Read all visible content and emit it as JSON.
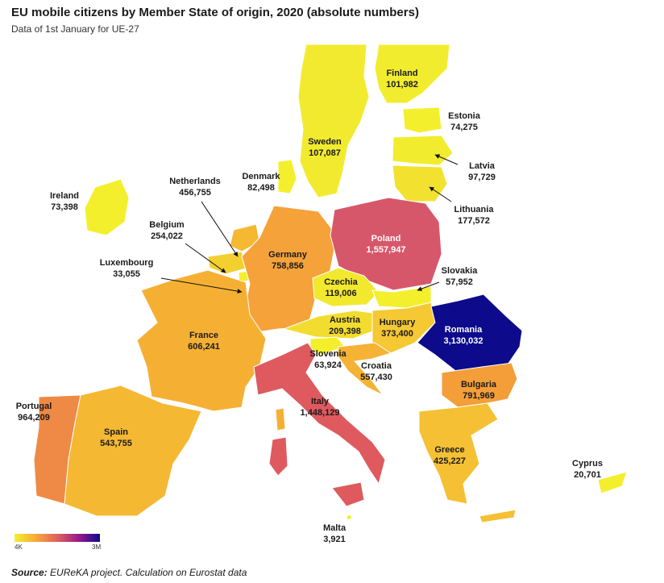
{
  "header": {
    "title": "EU mobile citizens by Member State of origin, 2020 (absolute numbers)",
    "subtitle": "Data of 1st January for UE-27"
  },
  "footer": {
    "source_label": "Source:",
    "source_text": " EUReKA project. Calculation on Eurostat data"
  },
  "legend": {
    "min_label": "4K",
    "max_label": "3M",
    "colors": [
      "#f5f02c",
      "#f7a83a",
      "#e0605e",
      "#9a1a8a",
      "#0d0a8c"
    ]
  },
  "map_data": {
    "type": "choropleth",
    "value_range": [
      3921,
      3130032
    ],
    "regions": [
      {
        "name": "Finland",
        "value_label": "101,982",
        "value": 101982,
        "color": "#f2ec2e"
      },
      {
        "name": "Estonia",
        "value_label": "74,275",
        "value": 74275,
        "color": "#f4ef2d"
      },
      {
        "name": "Latvia",
        "value_label": "97,729",
        "value": 97729,
        "color": "#f2ec2e"
      },
      {
        "name": "Lithuania",
        "value_label": "177,572",
        "value": 177572,
        "color": "#f2e22f"
      },
      {
        "name": "Sweden",
        "value_label": "107,087",
        "value": 107087,
        "color": "#f2ea2e"
      },
      {
        "name": "Denmark",
        "value_label": "82,498",
        "value": 82498,
        "color": "#f4ef2d"
      },
      {
        "name": "Ireland",
        "value_label": "73,398",
        "value": 73398,
        "color": "#f4ef2d"
      },
      {
        "name": "Netherlands",
        "value_label": "456,755",
        "value": 456755,
        "color": "#f5b833"
      },
      {
        "name": "Belgium",
        "value_label": "254,022",
        "value": 254022,
        "color": "#f2d030"
      },
      {
        "name": "Luxembourg",
        "value_label": "33,055",
        "value": 33055,
        "color": "#f4ef2d"
      },
      {
        "name": "Germany",
        "value_label": "758,856",
        "value": 758856,
        "color": "#f5a23a"
      },
      {
        "name": "Poland",
        "value_label": "1,557,947",
        "value": 1557947,
        "color": "#d7576a"
      },
      {
        "name": "Czechia",
        "value_label": "119,006",
        "value": 119006,
        "color": "#f2e82e"
      },
      {
        "name": "Slovakia",
        "value_label": "57,952",
        "value": 57952,
        "color": "#f4ef2d"
      },
      {
        "name": "Austria",
        "value_label": "209,398",
        "value": 209398,
        "color": "#f2dc2f"
      },
      {
        "name": "Hungary",
        "value_label": "373,400",
        "value": 373400,
        "color": "#f5c834"
      },
      {
        "name": "Romania",
        "value_label": "3,130,032",
        "value": 3130032,
        "color": "#0d0a8c"
      },
      {
        "name": "Slovenia",
        "value_label": "63,924",
        "value": 63924,
        "color": "#f4ef2d"
      },
      {
        "name": "Croatia",
        "value_label": "557,430",
        "value": 557430,
        "color": "#f5b234"
      },
      {
        "name": "Bulgaria",
        "value_label": "791,969",
        "value": 791969,
        "color": "#f49e3a"
      },
      {
        "name": "France",
        "value_label": "606,241",
        "value": 606241,
        "color": "#f5b034"
      },
      {
        "name": "Italy",
        "value_label": "1,448,129",
        "value": 1448129,
        "color": "#de5a5e"
      },
      {
        "name": "Portugal",
        "value_label": "964,209",
        "value": 964209,
        "color": "#ee8a45"
      },
      {
        "name": "Spain",
        "value_label": "543,755",
        "value": 543755,
        "color": "#f5b833"
      },
      {
        "name": "Greece",
        "value_label": "425,227",
        "value": 425227,
        "color": "#f5c034"
      },
      {
        "name": "Cyprus",
        "value_label": "20,701",
        "value": 20701,
        "color": "#f4ef2d"
      },
      {
        "name": "Malta",
        "value_label": "3,921",
        "value": 3921,
        "color": "#f4ef2d"
      }
    ]
  }
}
